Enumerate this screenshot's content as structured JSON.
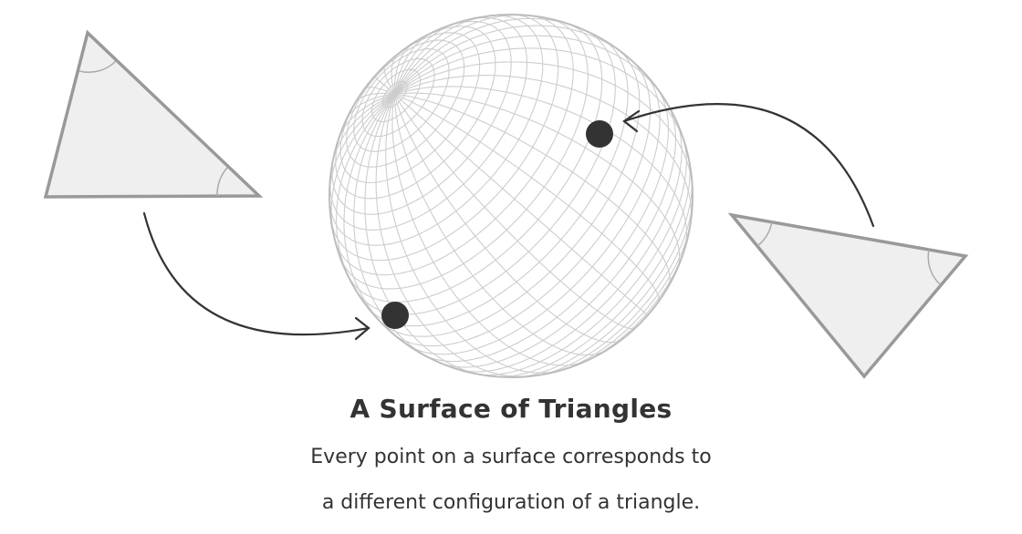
{
  "caption": {
    "title": "A Surface of Triangles",
    "line1": "Every point on a surface corresponds to",
    "line2": "a different configuration of a triangle."
  },
  "colors": {
    "background": "#ffffff",
    "triangle_fill": "#efeff0",
    "triangle_stroke": "#999999",
    "sphere_grid": "#cccccc",
    "point": "#333333",
    "arrow": "#333333",
    "text": "#333333"
  }
}
